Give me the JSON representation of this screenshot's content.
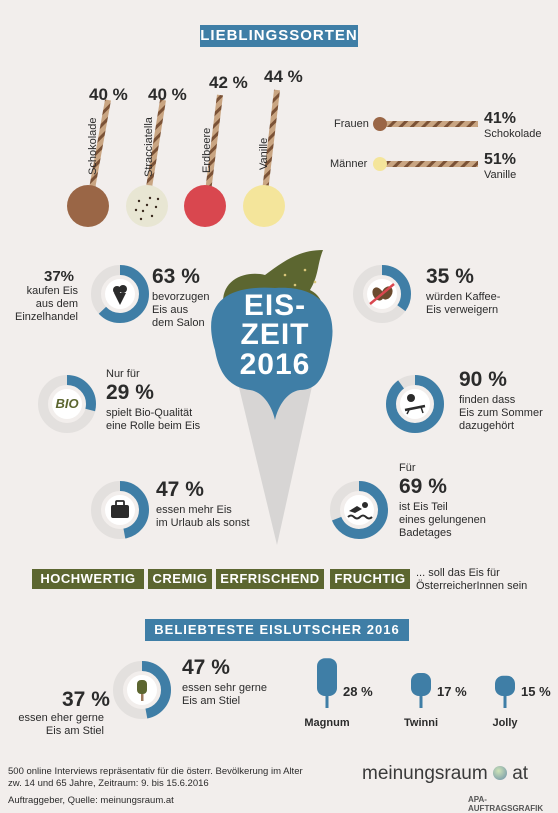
{
  "header": {
    "title": "LIEBLINGSSORTEN"
  },
  "flavors": [
    {
      "name": "Schokolade",
      "pct": "40 %",
      "value": 40,
      "color": "#9a6646"
    },
    {
      "name": "Stracciatella",
      "pct": "40 %",
      "value": 40,
      "color": "#e8e6d3"
    },
    {
      "name": "Erdbeere",
      "pct": "42 %",
      "value": 42,
      "color": "#d9474f"
    },
    {
      "name": "Vanille",
      "pct": "44 %",
      "value": 44,
      "color": "#f4e59b"
    }
  ],
  "gender": [
    {
      "label": "Frauen",
      "pct": "41%",
      "flavor": "Schokolade",
      "value": 41,
      "color": "#9a6646"
    },
    {
      "label": "Männer",
      "pct": "51%",
      "flavor": "Vanille",
      "value": 51,
      "color": "#f4e59b"
    }
  ],
  "center": {
    "line1": "EIS-",
    "line2": "ZEIT",
    "line3": "2016"
  },
  "stats": {
    "einzelhandel": {
      "pct": "37%",
      "text1": "kaufen Eis",
      "text2": "aus dem",
      "text3": "Einzelhandel"
    },
    "salon": {
      "pct": "63 %",
      "value": 63,
      "text1": "bevorzugen",
      "text2": "Eis aus",
      "text3": "dem Salon"
    },
    "kaffee": {
      "pct": "35 %",
      "value": 35,
      "text1": "würden Kaffee-",
      "text2": "Eis verweigern"
    },
    "bio": {
      "intro": "Nur für",
      "pct": "29 %",
      "value": 29,
      "text1": "spielt Bio-Qualität",
      "text2": "eine Rolle beim Eis",
      "icon_label": "BIO"
    },
    "sommer": {
      "pct": "90 %",
      "value": 90,
      "text1": "finden dass",
      "text2": "Eis zum Sommer",
      "text3": "dazugehört"
    },
    "urlaub": {
      "pct": "47 %",
      "value": 47,
      "text1": "essen mehr Eis",
      "text2": "im Urlaub als sonst"
    },
    "badetag": {
      "intro": "Für",
      "pct": "69 %",
      "value": 69,
      "text1": "ist Eis Teil",
      "text2": "eines gelungenen",
      "text3": "Badetages"
    }
  },
  "tags": [
    "HOCHWERTIG",
    "CREMIG",
    "ERFRISCHEND",
    "FRUCHTIG"
  ],
  "tags_suffix": {
    "line1": "... soll das Eis für",
    "line2": "ÖsterreicherInnen sein"
  },
  "lutscher_banner": "BELIEBTESTE EISLUTSCHER 2016",
  "stiel": {
    "left": {
      "pct": "37 %",
      "text1": "essen eher gerne",
      "text2": "Eis am Stiel"
    },
    "right": {
      "pct": "47 %",
      "value": 47,
      "text1": "essen sehr gerne",
      "text2": "Eis am Stiel"
    }
  },
  "chart_data": {
    "type": "bar",
    "title": "BELIEBTESTE EISLUTSCHER 2016",
    "categories": [
      "Magnum",
      "Twinni",
      "Jolly"
    ],
    "values": [
      28,
      17,
      15
    ],
    "labels": [
      "28 %",
      "17 %",
      "15 %"
    ]
  },
  "footer": {
    "line1": "500 online Interviews repräsentativ für die österr. Bevölkerung im Alter",
    "line2": "zw. 14 und 65 Jahre, Zeitraum: 9. bis 15.6.2016",
    "line3": "Auftraggeber, Quelle: meinungsraum.at",
    "brand": "meinungsraum",
    "brand_suffix": "at",
    "credit": "APA-AUFTRAGSGRAFIK"
  },
  "colors": {
    "blue": "#3f7ea6",
    "olive": "#5c6630",
    "grey": "#e3e0de",
    "cone": "#d7d5d4",
    "wafer": "#9e7a5d"
  }
}
